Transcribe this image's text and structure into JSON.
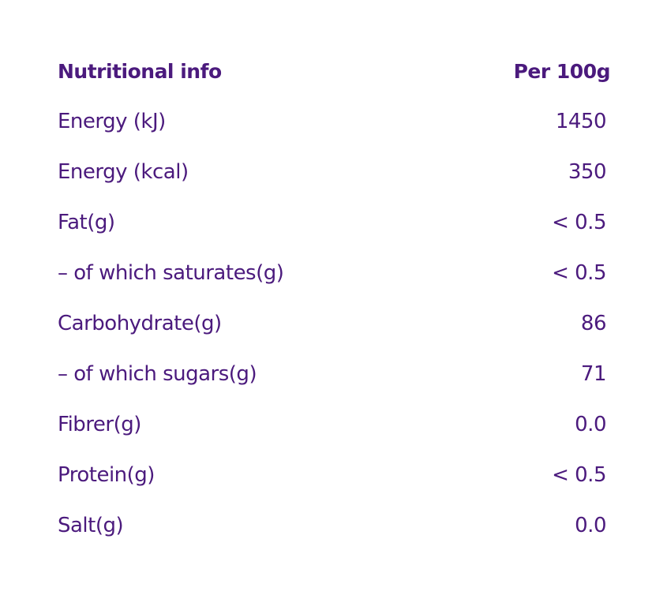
{
  "table": {
    "header": [
      "Nutritional info",
      "Per 100g"
    ],
    "rows": [
      [
        "Energy (kJ)",
        "1450"
      ],
      [
        "Energy (kcal)",
        "350"
      ],
      [
        "Fat(g)",
        "< 0.5"
      ],
      [
        "– of which saturates(g)",
        "< 0.5"
      ],
      [
        "Carbohydrate(g)",
        "86"
      ],
      [
        "– of which sugars(g)",
        "71"
      ],
      [
        "Fibrer(g)",
        "0.0"
      ],
      [
        "Protein(g)",
        "< 0.5"
      ],
      [
        "Salt(g)",
        "0.0"
      ]
    ]
  }
}
